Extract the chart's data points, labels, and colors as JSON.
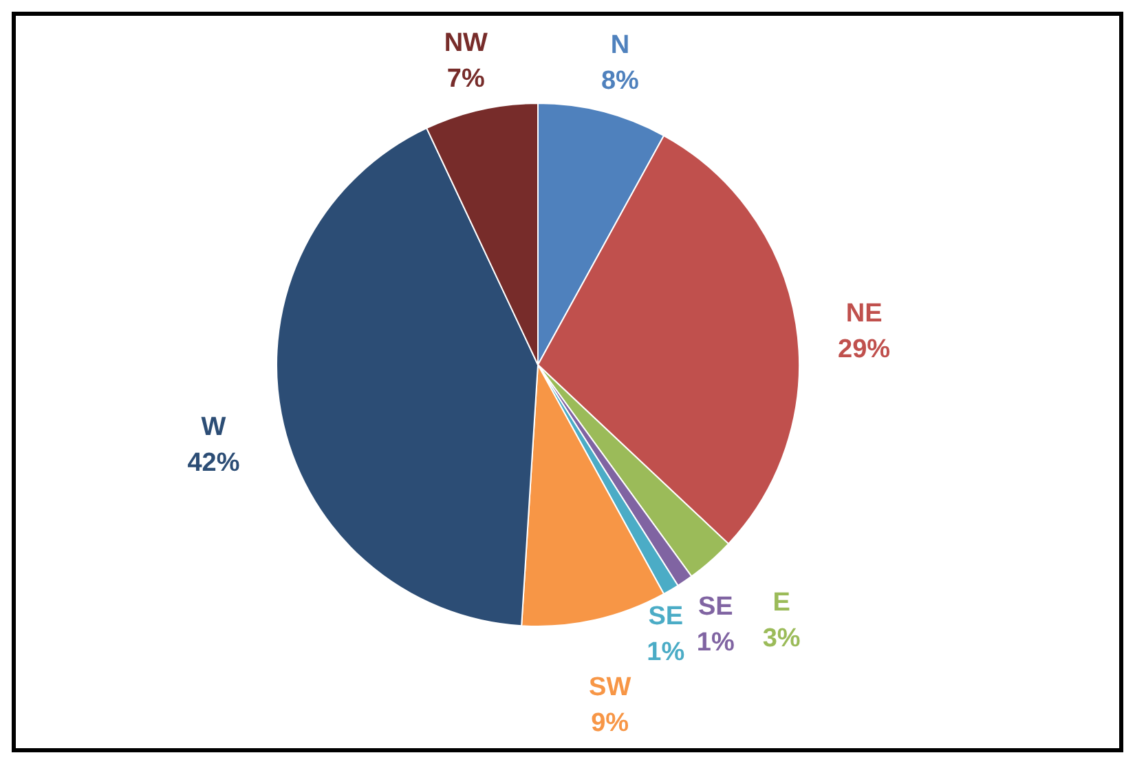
{
  "chart_data": {
    "type": "pie",
    "categories": [
      "N",
      "NE",
      "E",
      "SE",
      "SE",
      "SW",
      "W",
      "NW"
    ],
    "values": [
      8,
      29,
      3,
      1,
      1,
      9,
      42,
      7
    ],
    "value_labels": [
      "8%",
      "29%",
      "3%",
      "1%",
      "1%",
      "9%",
      "42%",
      "7%"
    ],
    "colors": [
      "#4f81bd",
      "#c0504d",
      "#9bbb59",
      "#8064a2",
      "#4bacc6",
      "#f79646",
      "#2c4d75",
      "#772c2a"
    ]
  }
}
